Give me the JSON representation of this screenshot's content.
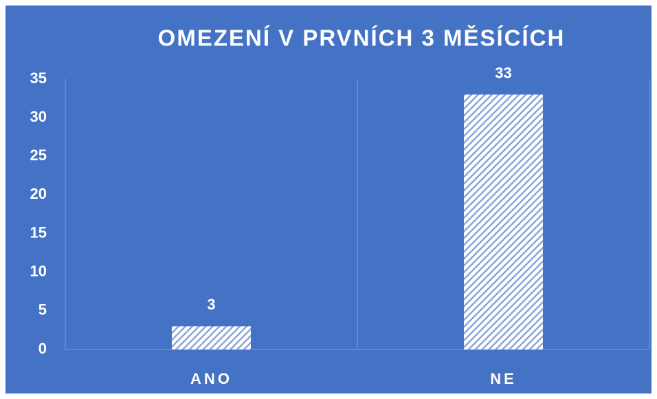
{
  "chart_data": {
    "type": "bar",
    "title": "OMEZENÍ V PRVNÍCH 3 MĚSÍCÍCH",
    "categories": [
      "ANO",
      "NE"
    ],
    "values": [
      3,
      33
    ],
    "color": "#ffffff",
    "background": "#4472c4",
    "ylim": [
      0,
      35
    ],
    "yticks": [
      0,
      5,
      10,
      15,
      20,
      25,
      30,
      35
    ],
    "grid": false
  }
}
